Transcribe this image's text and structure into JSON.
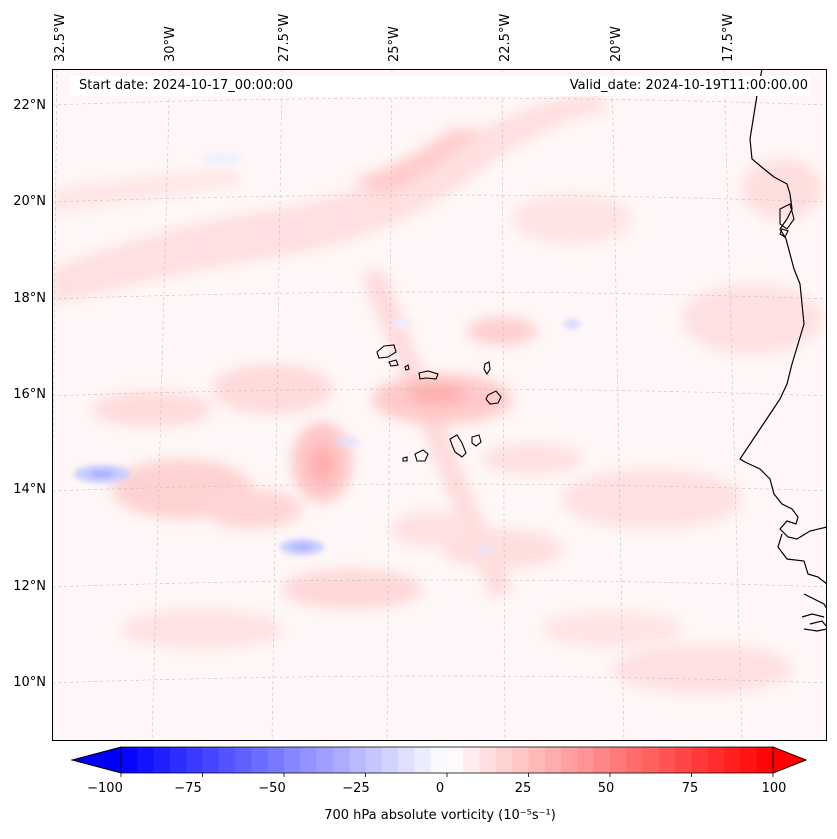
{
  "map": {
    "title_left": "Start date: 2024-10-17_00:00:00",
    "title_right": "Valid_date: 2024-10-19T11:00:00.00",
    "lon_labels": [
      "32.5°W",
      "30°W",
      "27.5°W",
      "25°W",
      "22.5°W",
      "20°W",
      "17.5°W"
    ],
    "lat_labels": [
      "22°N",
      "20°N",
      "18°N",
      "16°N",
      "14°N",
      "12°N",
      "10°N"
    ],
    "extent": {
      "lon_min": -33.0,
      "lon_max": -15.5,
      "lat_min": 8.9,
      "lat_max": 22.8
    },
    "field": "700 hPa absolute vorticity"
  },
  "colorbar": {
    "label": "700 hPa absolute vorticity (10⁻⁵s⁻¹)",
    "ticks": [
      "−100",
      "−75",
      "−50",
      "−25",
      "0",
      "25",
      "50",
      "75",
      "100"
    ],
    "min": -100,
    "max": 100,
    "levels": 40,
    "colors": {
      "negative": "#0000ff",
      "neutral": "#ffffff",
      "positive": "#ff0000"
    }
  }
}
